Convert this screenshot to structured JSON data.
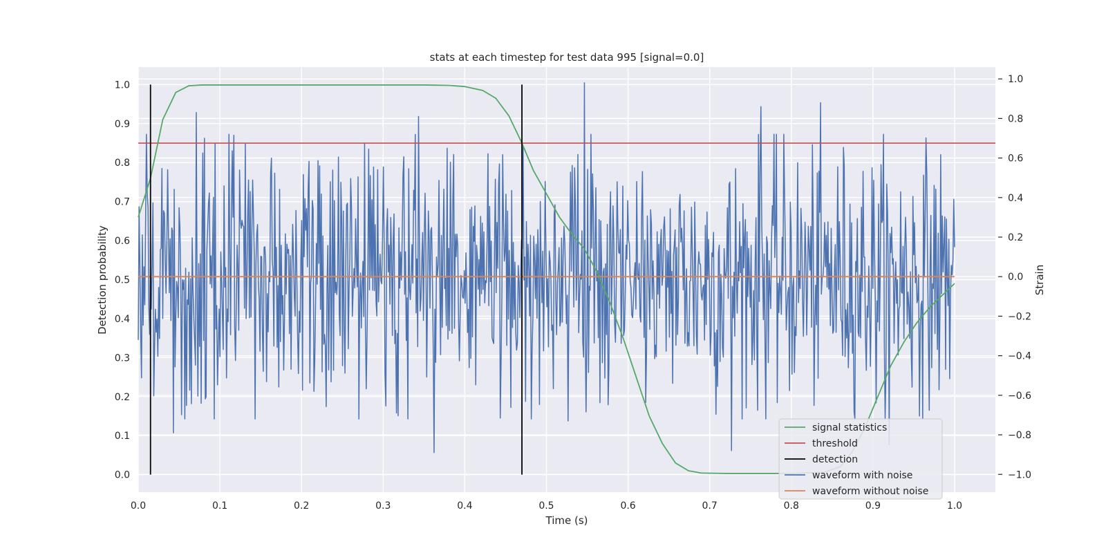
{
  "chart_data": {
    "type": "line",
    "title": "stats at each timestep for test data 995 [signal=0.0]",
    "xlabel": "Time (s)",
    "ylabel": "Detection probability",
    "ylabel_right": "Strain",
    "xlim": [
      0.0,
      1.05
    ],
    "ylim": [
      -0.045,
      1.045
    ],
    "ylim_right": [
      -1.09,
      1.06
    ],
    "x_ticks": [
      0.0,
      0.1,
      0.2,
      0.3,
      0.4,
      0.5,
      0.6,
      0.7,
      0.8,
      0.9,
      1.0
    ],
    "y_ticks": [
      0.0,
      0.1,
      0.2,
      0.3,
      0.4,
      0.5,
      0.6,
      0.7,
      0.8,
      0.9,
      1.0
    ],
    "y_right_ticks": [
      -1.0,
      -0.8,
      -0.6,
      -0.4,
      -0.2,
      0.0,
      0.2,
      0.4,
      0.6,
      0.8,
      1.0
    ],
    "x_tick_labels": [
      "0.0",
      "0.1",
      "0.2",
      "0.3",
      "0.4",
      "0.5",
      "0.6",
      "0.7",
      "0.8",
      "0.9",
      "1.0"
    ],
    "y_tick_labels": [
      "0.0",
      "0.1",
      "0.2",
      "0.3",
      "0.4",
      "0.5",
      "0.6",
      "0.7",
      "0.8",
      "0.9",
      "1.0"
    ],
    "y_right_tick_labels": [
      "−1.0",
      "−0.8",
      "−0.6",
      "−0.4",
      "−0.2",
      "0.0",
      "0.2",
      "0.4",
      "0.6",
      "0.8",
      "1.0"
    ],
    "grid": true,
    "legend_position": "bottom-right",
    "series": [
      {
        "name": "signal statistics",
        "axis": "left",
        "color": "#55a868",
        "x": [
          0.0,
          0.015,
          0.03,
          0.046,
          0.062,
          0.078,
          0.1,
          0.15,
          0.2,
          0.25,
          0.3,
          0.35,
          0.38,
          0.4,
          0.422,
          0.438,
          0.454,
          0.47,
          0.484,
          0.5,
          0.516,
          0.53,
          0.546,
          0.562,
          0.578,
          0.594,
          0.61,
          0.626,
          0.642,
          0.658,
          0.674,
          0.69,
          0.72,
          0.8,
          0.84,
          0.86,
          0.875,
          0.89,
          0.906,
          0.922,
          0.938,
          0.954,
          0.97,
          0.985,
          1.0
        ],
        "y": [
          0.66,
          0.76,
          0.91,
          0.98,
          0.997,
          0.999,
          0.999,
          0.999,
          0.999,
          0.999,
          0.999,
          0.999,
          0.998,
          0.995,
          0.985,
          0.965,
          0.92,
          0.85,
          0.78,
          0.72,
          0.66,
          0.62,
          0.58,
          0.52,
          0.44,
          0.35,
          0.25,
          0.15,
          0.08,
          0.03,
          0.01,
          0.004,
          0.003,
          0.003,
          0.006,
          0.02,
          0.06,
          0.12,
          0.2,
          0.28,
          0.34,
          0.39,
          0.43,
          0.46,
          0.49
        ]
      },
      {
        "name": "threshold",
        "axis": "left",
        "color": "#c44e52",
        "x": [
          0.0,
          1.05
        ],
        "y": [
          0.85,
          0.85
        ]
      },
      {
        "name": "detection",
        "axis": "left",
        "color": "#000000",
        "segments": [
          {
            "x": 0.015,
            "y": [
              0.0,
              1.0
            ]
          },
          {
            "x": 0.47,
            "y": [
              0.0,
              1.0
            ]
          }
        ]
      },
      {
        "name": "waveform with noise",
        "axis": "right",
        "color": "#4c72b0",
        "x": [
          0.0,
          1.0
        ],
        "count": 1000,
        "seed": 995,
        "std": 0.32,
        "peaks": [
          {
            "x": 0.071,
            "y": 0.83
          },
          {
            "x": 0.043,
            "y": -0.79
          },
          {
            "x": 0.343,
            "y": 0.81
          },
          {
            "x": 0.362,
            "y": -0.89
          },
          {
            "x": 0.547,
            "y": 0.98
          },
          {
            "x": 0.527,
            "y": -0.73
          },
          {
            "x": 0.727,
            "y": -0.88
          },
          {
            "x": 0.763,
            "y": 0.86
          },
          {
            "x": 0.836,
            "y": 0.88
          },
          {
            "x": 0.92,
            "y": -0.85
          }
        ]
      },
      {
        "name": "waveform without noise",
        "axis": "right",
        "color": "#dd8452",
        "x": [
          0.0,
          1.0
        ],
        "y": [
          0.0,
          0.0
        ]
      }
    ],
    "legend": [
      "signal statistics",
      "threshold",
      "detection",
      "waveform with noise",
      "waveform without noise"
    ]
  }
}
